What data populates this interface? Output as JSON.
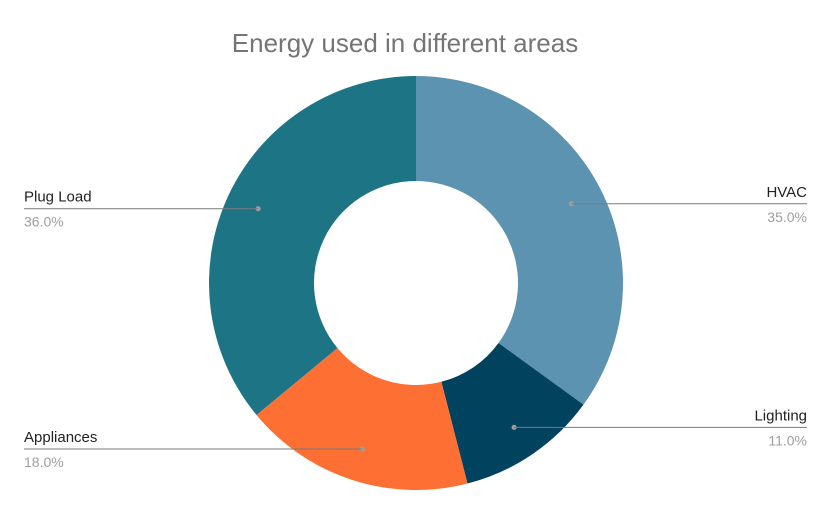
{
  "chart_data": {
    "type": "pie",
    "subtype": "donut",
    "title": "Energy used in different areas",
    "slices": [
      {
        "label": "HVAC",
        "value": 35.0,
        "value_text": "35.0%",
        "color": "#5b93b1"
      },
      {
        "label": "Lighting",
        "value": 11.0,
        "value_text": "11.0%",
        "color": "#01425e"
      },
      {
        "label": "Appliances",
        "value": 18.0,
        "value_text": "18.0%",
        "color": "#fd6f32"
      },
      {
        "label": "Plug Load",
        "value": 36.0,
        "value_text": "36.0%",
        "color": "#1d7484"
      }
    ],
    "legend": "none",
    "label_style": "callout"
  }
}
